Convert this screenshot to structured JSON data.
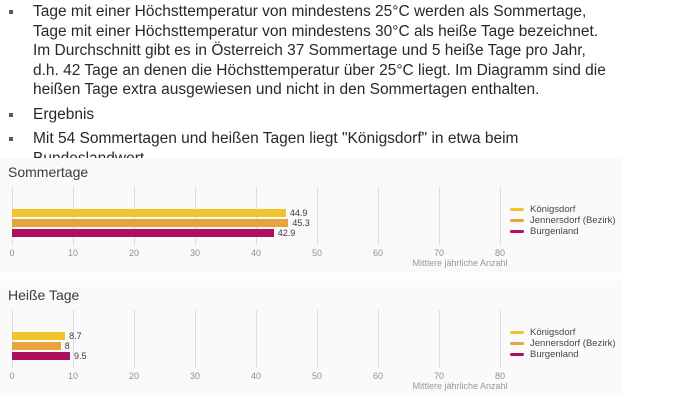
{
  "bullets": [
    {
      "lines": [
        "Tage mit einer Höchsttemperatur von mindestens 25°C werden als Sommertage,",
        "Tage mit einer Höchsttemperatur von mindestens 30°C als heiße Tage bezeichnet.",
        "Im Durchschnitt gibt es in Österreich 37 Sommertage und 5 heiße Tage pro Jahr,",
        "d.h. 42 Tage an denen die Höchsttemperatur über 25°C liegt. Im Diagramm sind die",
        "heißen Tage extra ausgewiesen und nicht in den Sommertagen enthalten."
      ]
    },
    {
      "lines": [
        "Ergebnis"
      ]
    },
    {
      "lines": [
        "Mit 54 Sommertagen und heißen Tagen liegt \"Königsdorf\" in etwa beim",
        "Bundeslandwert."
      ]
    }
  ],
  "colors": {
    "series_yellow": "#F0C42E",
    "series_orange": "#E7A33C",
    "series_magenta": "#AE1060",
    "chart_background": "#fafafa",
    "gridline": "#dcdcdc"
  },
  "chart_data": [
    {
      "type": "bar",
      "orientation": "horizontal",
      "title": "Sommertage",
      "categories": [
        "Königsdorf",
        "Jennersdorf (Bezirk)",
        "Burgenland"
      ],
      "values": [
        44.9,
        45.3,
        42.9
      ],
      "value_labels": [
        "44.9",
        "45.3",
        "42.9"
      ],
      "colors": [
        "#F0C42E",
        "#E7A33C",
        "#AE1060"
      ],
      "xlabel": "Mittlere jährliche Anzahl",
      "xticks": [
        0,
        10,
        20,
        30,
        40,
        50,
        60,
        70,
        80
      ],
      "xlim": [
        0,
        80
      ],
      "grid": true,
      "legend": [
        "Königsdorf",
        "Jennersdorf (Bezirk)",
        "Burgenland"
      ],
      "legend_position": "right"
    },
    {
      "type": "bar",
      "orientation": "horizontal",
      "title": "Heiße Tage",
      "categories": [
        "Königsdorf",
        "Jennersdorf (Bezirk)",
        "Burgenland"
      ],
      "values": [
        8.7,
        8,
        9.5
      ],
      "value_labels": [
        "8.7",
        "8",
        "9.5"
      ],
      "colors": [
        "#F0C42E",
        "#E7A33C",
        "#AE1060"
      ],
      "xlabel": "Mittlere jährliche Anzahl",
      "xticks": [
        0,
        10,
        20,
        30,
        40,
        50,
        60,
        70,
        80
      ],
      "xlim": [
        0,
        80
      ],
      "grid": true,
      "legend": [
        "Königsdorf",
        "Jennersdorf (Bezirk)",
        "Burgenland"
      ],
      "legend_position": "right"
    }
  ]
}
